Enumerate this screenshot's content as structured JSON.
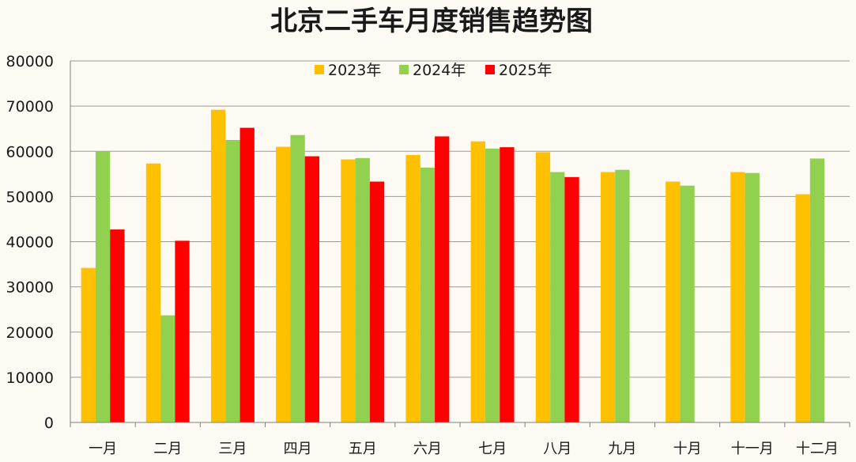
{
  "chart_data": {
    "type": "bar",
    "title": "北京二手车月度销售趋势图",
    "xlabel": "",
    "ylabel": "",
    "ylim": [
      0,
      80000
    ],
    "yticks": [
      0,
      10000,
      20000,
      30000,
      40000,
      50000,
      60000,
      70000,
      80000
    ],
    "grid": true,
    "legend_position": "top",
    "categories": [
      "一月",
      "二月",
      "三月",
      "四月",
      "五月",
      "六月",
      "七月",
      "八月",
      "九月",
      "十月",
      "十一月",
      "十二月"
    ],
    "series": [
      {
        "name": "2023年",
        "color": "#ffc000",
        "values": [
          34200,
          57300,
          69200,
          61000,
          58200,
          59200,
          62200,
          59800,
          55400,
          53300,
          55400,
          50500
        ]
      },
      {
        "name": "2024年",
        "color": "#92d050",
        "values": [
          60000,
          23700,
          62500,
          63600,
          58500,
          56400,
          60600,
          55400,
          55900,
          52400,
          55200,
          58400
        ]
      },
      {
        "name": "2025年",
        "color": "#ff0000",
        "values": [
          42700,
          40200,
          65200,
          58900,
          53300,
          63300,
          60900,
          54300,
          null,
          null,
          null,
          null
        ]
      }
    ]
  }
}
